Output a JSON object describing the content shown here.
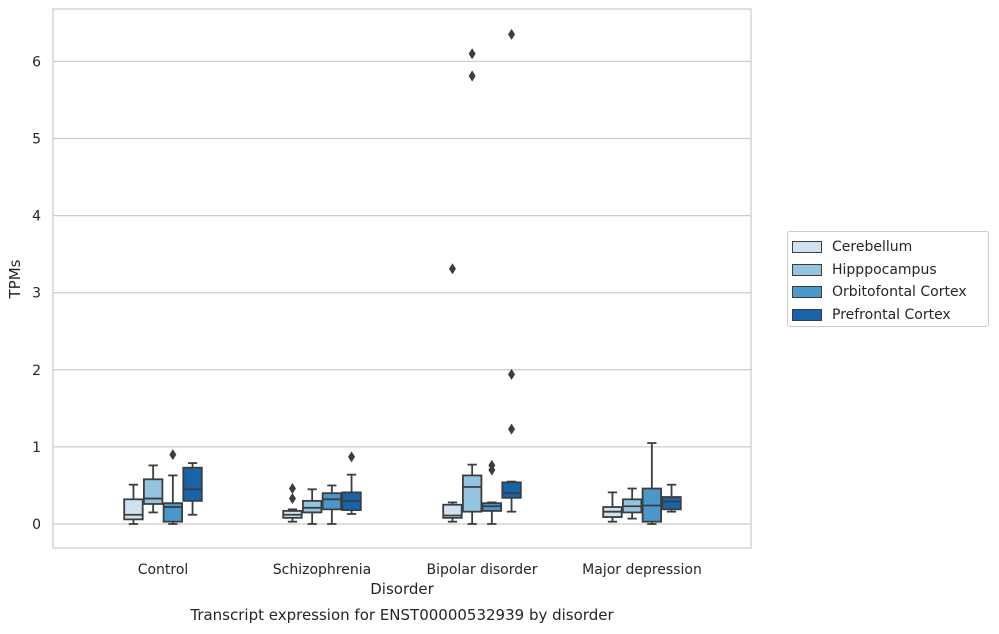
{
  "chart_data": {
    "type": "box",
    "title": "Transcript expression for ENST00000532939 by disorder",
    "xlabel": "Disorder",
    "ylabel": "TPMs",
    "ylim": [
      -0.31,
      6.7
    ],
    "yticks": [
      0,
      1,
      2,
      3,
      4,
      5,
      6
    ],
    "grid": true,
    "legend_position": "right",
    "categories": [
      "Control",
      "Schizophrenia",
      "Bipolar disorder",
      "Major depression"
    ],
    "series": [
      {
        "name": "Cerebellum",
        "color": "#d0e1f2",
        "boxes": [
          {
            "whislo": 0.0,
            "q1": 0.06,
            "med": 0.12,
            "q3": 0.32,
            "whishi": 0.51,
            "fliers": []
          },
          {
            "whislo": 0.03,
            "q1": 0.08,
            "med": 0.12,
            "q3": 0.17,
            "whishi": 0.19,
            "fliers": [
              0.33,
              0.46
            ]
          },
          {
            "whislo": 0.03,
            "q1": 0.08,
            "med": 0.11,
            "q3": 0.25,
            "whishi": 0.28,
            "fliers": [
              3.31
            ]
          },
          {
            "whislo": 0.03,
            "q1": 0.09,
            "med": 0.16,
            "q3": 0.22,
            "whishi": 0.41,
            "fliers": []
          }
        ]
      },
      {
        "name": "Hipppocampus",
        "color": "#94c4df",
        "boxes": [
          {
            "whislo": 0.15,
            "q1": 0.26,
            "med": 0.33,
            "q3": 0.58,
            "whishi": 0.76,
            "fliers": []
          },
          {
            "whislo": 0.0,
            "q1": 0.15,
            "med": 0.21,
            "q3": 0.3,
            "whishi": 0.45,
            "fliers": []
          },
          {
            "whislo": 0.0,
            "q1": 0.16,
            "med": 0.48,
            "q3": 0.63,
            "whishi": 0.77,
            "fliers": [
              5.81,
              6.1
            ]
          },
          {
            "whislo": 0.07,
            "q1": 0.15,
            "med": 0.23,
            "q3": 0.32,
            "whishi": 0.46,
            "fliers": []
          }
        ]
      },
      {
        "name": "Orbitofontal Cortex",
        "color": "#4a98c9",
        "boxes": [
          {
            "whislo": 0.0,
            "q1": 0.03,
            "med": 0.22,
            "q3": 0.27,
            "whishi": 0.63,
            "fliers": [
              0.9
            ]
          },
          {
            "whislo": 0.0,
            "q1": 0.19,
            "med": 0.32,
            "q3": 0.4,
            "whishi": 0.5,
            "fliers": []
          },
          {
            "whislo": 0.0,
            "q1": 0.17,
            "med": 0.23,
            "q3": 0.27,
            "whishi": 0.28,
            "fliers": [
              0.7,
              0.76
            ]
          },
          {
            "whislo": 0.0,
            "q1": 0.03,
            "med": 0.24,
            "q3": 0.46,
            "whishi": 1.05,
            "fliers": []
          }
        ]
      },
      {
        "name": "Prefrontal Cortex",
        "color": "#1764ab",
        "boxes": [
          {
            "whislo": 0.12,
            "q1": 0.3,
            "med": 0.45,
            "q3": 0.73,
            "whishi": 0.79,
            "fliers": []
          },
          {
            "whislo": 0.13,
            "q1": 0.18,
            "med": 0.3,
            "q3": 0.41,
            "whishi": 0.64,
            "fliers": [
              0.87
            ]
          },
          {
            "whislo": 0.16,
            "q1": 0.34,
            "med": 0.4,
            "q3": 0.54,
            "whishi": 0.55,
            "fliers": [
              1.23,
              1.94,
              6.35
            ]
          },
          {
            "whislo": 0.16,
            "q1": 0.19,
            "med": 0.29,
            "q3": 0.35,
            "whishi": 0.51,
            "fliers": []
          }
        ]
      }
    ]
  }
}
